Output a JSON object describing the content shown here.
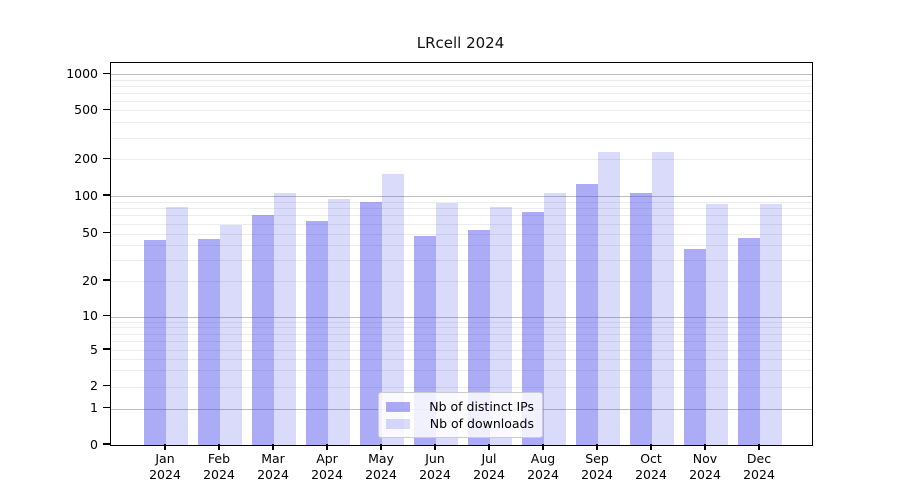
{
  "chart_data": {
    "type": "bar",
    "title": "LRcell 2024",
    "categories": [
      "Jan",
      "Feb",
      "Mar",
      "Apr",
      "May",
      "Jun",
      "Jul",
      "Aug",
      "Sep",
      "Oct",
      "Nov",
      "Dec"
    ],
    "x_year_label": "2024",
    "series": [
      {
        "name": "Nb of distinct IPs",
        "color": "rgba(70,70,235,0.45)",
        "values": [
          44,
          45,
          70,
          63,
          90,
          48,
          54,
          74,
          125,
          106,
          37,
          46
        ]
      },
      {
        "name": "Nb of downloads",
        "color": "rgba(70,70,235,0.2)",
        "values": [
          81,
          59,
          105,
          94,
          152,
          88,
          82,
          106,
          230,
          230,
          87,
          87
        ]
      }
    ],
    "yscale": "symlog",
    "y_ticks": [
      0,
      1,
      2,
      5,
      10,
      20,
      50,
      100,
      200,
      500,
      1000
    ],
    "y_tick_labels": [
      "0",
      "1",
      "2",
      "5",
      "10",
      "20",
      "50",
      "100",
      "200",
      "500",
      "1000"
    ],
    "ylim": [
      0,
      1200
    ],
    "grid": true,
    "legend_position": "lower center",
    "colors": {
      "bar_dark": "rgba(70,70,235,0.45)",
      "bar_light": "rgba(70,70,235,0.2)",
      "grid_major": "#bdbdbd",
      "grid_minor": "#ececec",
      "axis": "#000000",
      "legend_border": "#cccccc"
    }
  }
}
